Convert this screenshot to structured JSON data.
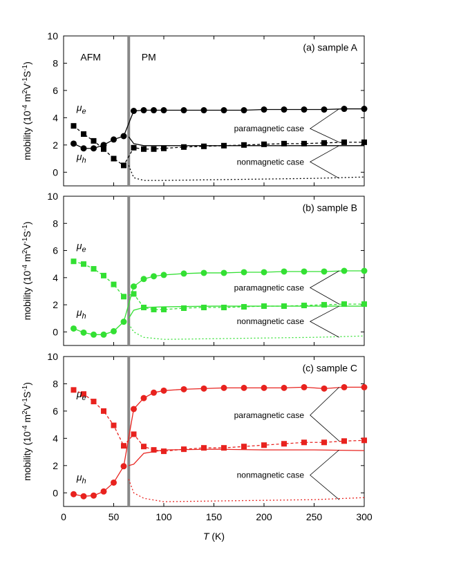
{
  "chart_data": [
    {
      "type": "line",
      "title": "(a) sample A",
      "color": "#000000",
      "regions": [
        "AFM",
        "PM"
      ],
      "labels": {
        "electron": {
          "text": "μ",
          "sub": "e"
        },
        "hole": {
          "text": "μ",
          "sub": "h"
        }
      },
      "annotations": [
        "paramagnetic case",
        "nonmagnetic case"
      ],
      "transition_T": 65,
      "x": [
        10,
        20,
        30,
        40,
        50,
        60,
        70,
        80,
        90,
        100,
        120,
        140,
        160,
        180,
        200,
        220,
        240,
        260,
        280,
        300
      ],
      "series": [
        {
          "marker": "square",
          "line": "dash",
          "values": [
            3.4,
            2.8,
            2.3,
            1.7,
            1.0,
            0.5,
            1.8,
            1.7,
            1.7,
            1.75,
            1.85,
            1.9,
            1.95,
            2.0,
            2.05,
            2.1,
            2.1,
            2.15,
            2.2,
            2.2
          ]
        },
        {
          "marker": "circle",
          "line": "solid",
          "values": [
            2.1,
            1.75,
            1.75,
            2.0,
            2.4,
            2.65,
            4.5,
            4.55,
            4.55,
            4.55,
            4.55,
            4.55,
            4.55,
            4.55,
            4.6,
            4.6,
            4.6,
            4.6,
            4.65,
            4.65
          ]
        }
      ],
      "model_x": [
        65,
        70,
        80,
        100,
        150,
        200,
        250,
        300
      ],
      "models": [
        {
          "line": "solid",
          "values": [
            2.6,
            2.1,
            1.95,
            1.95,
            1.95,
            1.95,
            1.95,
            1.95
          ]
        },
        {
          "line": "dot",
          "values": [
            0.5,
            -0.4,
            -0.6,
            -0.6,
            -0.55,
            -0.5,
            -0.45,
            -0.35
          ]
        }
      ],
      "ylabel_parts": [
        {
          "text": "mobility (10"
        },
        {
          "text": "-4",
          "sup": true
        },
        {
          "text": " m"
        },
        {
          "text": "2",
          "sup": true
        },
        {
          "text": "V"
        },
        {
          "text": "-1",
          "sup": true
        },
        {
          "text": "S"
        },
        {
          "text": "-1",
          "sup": true
        },
        {
          "text": ")"
        }
      ],
      "xlim": [
        0,
        300
      ],
      "xticks": [
        0,
        50,
        100,
        150,
        200,
        250,
        300
      ],
      "show_xtick_labels": false,
      "ylim": [
        -1,
        10
      ],
      "yticks": [
        0,
        2,
        4,
        6,
        8,
        10
      ]
    },
    {
      "type": "line",
      "title": "(b) sample B",
      "color": "#33e033",
      "labels": {
        "electron": {
          "text": "μ",
          "sub": "e"
        },
        "hole": {
          "text": "μ",
          "sub": "h"
        }
      },
      "annotations": [
        "paramagnetic case",
        "nonmagnetic case"
      ],
      "transition_T": 65,
      "x": [
        10,
        20,
        30,
        40,
        50,
        60,
        70,
        80,
        90,
        100,
        120,
        140,
        160,
        180,
        200,
        220,
        240,
        260,
        280,
        300
      ],
      "series": [
        {
          "marker": "square",
          "line": "dash",
          "values": [
            5.2,
            5.0,
            4.65,
            4.15,
            3.5,
            2.6,
            2.8,
            1.8,
            1.65,
            1.65,
            1.75,
            1.8,
            1.8,
            1.85,
            1.9,
            1.9,
            1.95,
            2.0,
            2.05,
            2.05
          ]
        },
        {
          "marker": "circle",
          "line": "solid",
          "values": [
            0.25,
            -0.05,
            -0.2,
            -0.2,
            0.05,
            0.75,
            3.35,
            3.9,
            4.1,
            4.2,
            4.3,
            4.35,
            4.35,
            4.4,
            4.4,
            4.45,
            4.45,
            4.45,
            4.5,
            4.5
          ]
        }
      ],
      "model_x": [
        65,
        70,
        80,
        100,
        150,
        200,
        250,
        300
      ],
      "models": [
        {
          "line": "solid",
          "values": [
            1.0,
            1.6,
            1.8,
            1.85,
            1.9,
            1.9,
            1.9,
            1.9
          ]
        },
        {
          "line": "dot",
          "values": [
            0.6,
            0.0,
            -0.4,
            -0.55,
            -0.5,
            -0.45,
            -0.4,
            -0.3
          ]
        }
      ],
      "ylabel_parts": [
        {
          "text": "mobility (10"
        },
        {
          "text": "-4",
          "sup": true
        },
        {
          "text": " m"
        },
        {
          "text": "2",
          "sup": true
        },
        {
          "text": "V"
        },
        {
          "text": "-1",
          "sup": true
        },
        {
          "text": "S"
        },
        {
          "text": "-1",
          "sup": true
        },
        {
          "text": ")"
        }
      ],
      "xlim": [
        0,
        300
      ],
      "xticks": [
        0,
        50,
        100,
        150,
        200,
        250,
        300
      ],
      "show_xtick_labels": false,
      "ylim": [
        -1,
        10
      ],
      "yticks": [
        0,
        2,
        4,
        6,
        8,
        10
      ]
    },
    {
      "type": "line",
      "title": "(c) sample C",
      "color": "#e8221e",
      "labels": {
        "electron": {
          "text": "μ",
          "sub": "e"
        },
        "hole": {
          "text": "μ",
          "sub": "h"
        }
      },
      "annotations": [
        "paramagnetic case",
        "nonmagnetic case"
      ],
      "transition_T": 65,
      "x": [
        10,
        20,
        30,
        40,
        50,
        60,
        70,
        80,
        90,
        100,
        120,
        140,
        160,
        180,
        200,
        220,
        240,
        260,
        280,
        300
      ],
      "series": [
        {
          "marker": "square",
          "line": "dash",
          "values": [
            7.55,
            7.25,
            6.7,
            6.0,
            4.95,
            3.45,
            4.3,
            3.4,
            3.15,
            3.05,
            3.2,
            3.3,
            3.3,
            3.4,
            3.5,
            3.6,
            3.7,
            3.7,
            3.8,
            3.85
          ]
        },
        {
          "marker": "circle",
          "line": "solid",
          "values": [
            -0.1,
            -0.25,
            -0.2,
            0.1,
            0.75,
            1.95,
            6.15,
            6.95,
            7.35,
            7.5,
            7.6,
            7.65,
            7.7,
            7.7,
            7.7,
            7.7,
            7.75,
            7.65,
            7.75,
            7.75
          ]
        }
      ],
      "model_x": [
        65,
        70,
        80,
        100,
        150,
        200,
        250,
        300
      ],
      "models": [
        {
          "line": "solid",
          "values": [
            2.0,
            2.1,
            2.9,
            3.15,
            3.2,
            3.15,
            3.15,
            3.1
          ]
        },
        {
          "line": "dot",
          "values": [
            1.0,
            0.0,
            -0.4,
            -0.65,
            -0.6,
            -0.55,
            -0.5,
            -0.35
          ]
        }
      ],
      "ylabel_parts": [
        {
          "text": "mobility (10"
        },
        {
          "text": "-4",
          "sup": true
        },
        {
          "text": " m"
        },
        {
          "text": "2",
          "sup": true
        },
        {
          "text": "V"
        },
        {
          "text": "-1",
          "sup": true
        },
        {
          "text": "S"
        },
        {
          "text": "-1",
          "sup": true
        },
        {
          "text": ")"
        }
      ],
      "xlabel_parts": [
        {
          "text": "T",
          "italic": true
        },
        {
          "text": " (K)"
        }
      ],
      "xlim": [
        0,
        300
      ],
      "xticks": [
        0,
        50,
        100,
        150,
        200,
        250,
        300
      ],
      "show_xtick_labels": true,
      "ylim": [
        -1,
        10
      ],
      "yticks": [
        0,
        2,
        4,
        6,
        8,
        10
      ]
    }
  ]
}
